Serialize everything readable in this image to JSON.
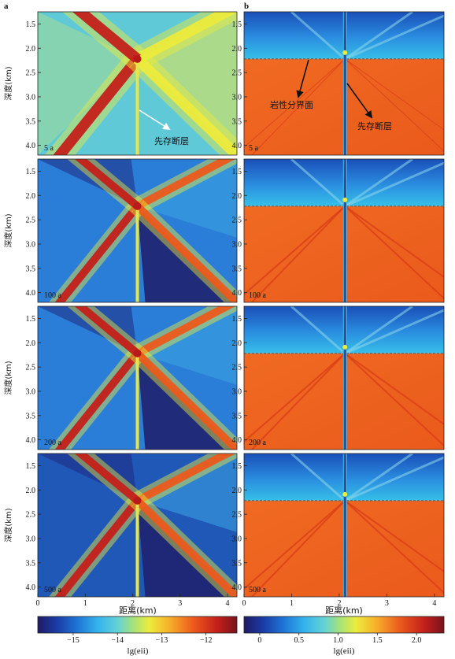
{
  "panel_letters": [
    "a",
    "b"
  ],
  "ylabel": "深度(km)",
  "xlabel": "距离(km)",
  "y_ticks": [
    "1.5",
    "2.0",
    "2.5",
    "3.0",
    "3.5",
    "4.0"
  ],
  "x_ticks": [
    "0",
    "1",
    "2",
    "3",
    "4"
  ],
  "time_labels": [
    "5 a",
    "100 a",
    "200 a",
    "500 a"
  ],
  "annotations": {
    "fault_a": "先存断层",
    "interface_b": "岩性分界面",
    "fault_b": "先存断层"
  },
  "colorbar_a": {
    "ticks": [
      "−15",
      "−14",
      "−13",
      "−12"
    ],
    "label": "lg(eii)"
  },
  "colorbar_b": {
    "ticks": [
      "0",
      "0.5",
      "1.0",
      "1.5",
      "2.0"
    ],
    "label": "lg(eii)"
  },
  "colors": {
    "ramp": [
      "#1f1a64",
      "#1a3ea8",
      "#1f76d6",
      "#33b2ec",
      "#62d2d6",
      "#a6e27a",
      "#ecec3c",
      "#f7b02a",
      "#ec5a1c",
      "#c4201a",
      "#78131c"
    ]
  },
  "chart_data": [
    {
      "type": "heatmap",
      "panel": "a",
      "xlabel": "距离(km)",
      "ylabel": "深度(km)",
      "xlim": [
        0,
        4.2
      ],
      "ylim": [
        1.25,
        4.2
      ],
      "colorbar": {
        "label": "lg(eii)",
        "range": [
          -15.8,
          -11.3
        ],
        "ticks": [
          -15,
          -14,
          -13,
          -12
        ]
      },
      "frames": [
        "5 a",
        "100 a",
        "200 a",
        "500 a"
      ],
      "fault_x_km": 2.1,
      "intersection_depth_km": 2.22
    },
    {
      "type": "heatmap",
      "panel": "b",
      "xlabel": "距离(km)",
      "ylabel": "深度(km)",
      "xlim": [
        0,
        4.2
      ],
      "ylim": [
        1.25,
        4.2
      ],
      "colorbar": {
        "label": "lg(eii)",
        "range": [
          -0.2,
          2.35
        ],
        "ticks": [
          0,
          0.5,
          1.0,
          1.5,
          2.0
        ]
      },
      "frames": [
        "5 a",
        "100 a",
        "200 a",
        "500 a"
      ],
      "fault_x_km": 2.12,
      "interface_depth_km": 2.22
    }
  ]
}
